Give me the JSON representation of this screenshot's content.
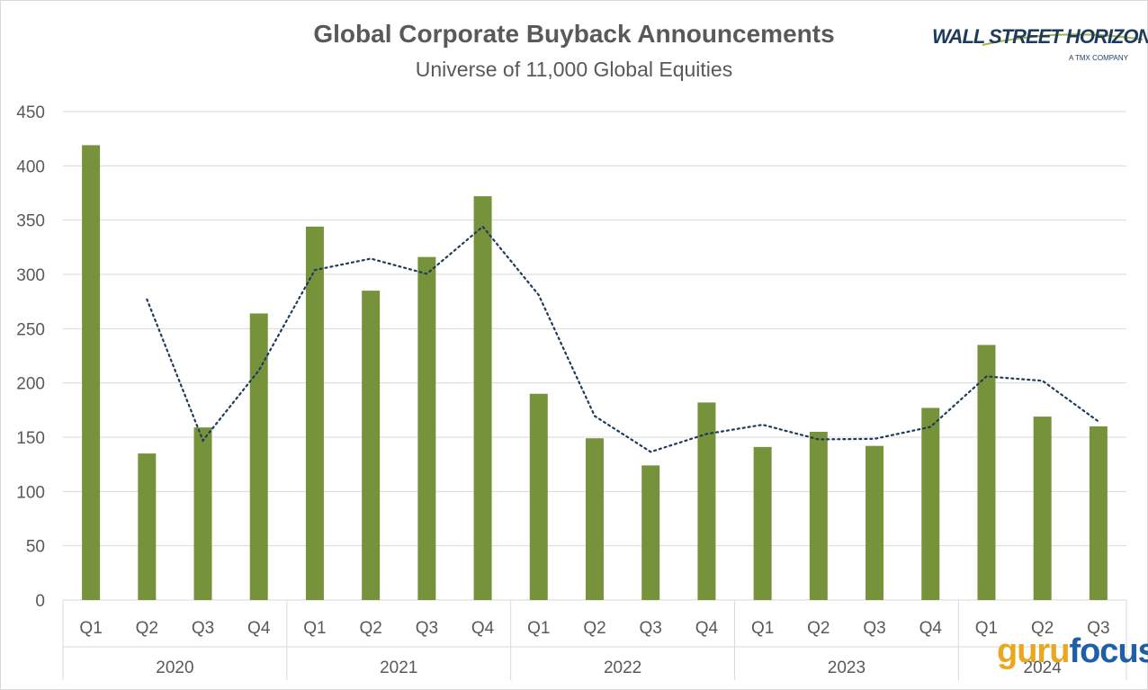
{
  "title": "Global Corporate Buyback Announcements",
  "subtitle": "Universe of 11,000 Global Equities",
  "logos": {
    "wsh_name": "WALL STREET HORIZON",
    "wsh_tagline": "A TMX COMPANY",
    "watermark_part1": "guru",
    "watermark_part2": "focus"
  },
  "colors": {
    "bar": "#76933c",
    "trendline": "#1f3b5c",
    "grid": "#d9d9d9",
    "text": "#595959"
  },
  "chart_data": {
    "type": "bar",
    "title": "Global Corporate Buyback Announcements",
    "subtitle": "Universe of 11,000 Global Equities",
    "categories": [
      "Q1",
      "Q2",
      "Q3",
      "Q4",
      "Q1",
      "Q2",
      "Q3",
      "Q4",
      "Q1",
      "Q2",
      "Q3",
      "Q4",
      "Q1",
      "Q2",
      "Q3",
      "Q4",
      "Q1",
      "Q2",
      "Q3"
    ],
    "groups": [
      {
        "label": "2020",
        "count": 4
      },
      {
        "label": "2021",
        "count": 4
      },
      {
        "label": "2022",
        "count": 4
      },
      {
        "label": "2023",
        "count": 4
      },
      {
        "label": "2024",
        "count": 3
      }
    ],
    "series": [
      {
        "values": [
          419,
          135,
          159,
          264,
          344,
          285,
          316,
          372,
          190,
          149,
          124,
          182,
          141,
          155,
          142,
          177,
          235,
          169,
          160
        ]
      }
    ],
    "trendline": {
      "style": "dotted",
      "type": "2-period moving average",
      "values": [
        null,
        277,
        147,
        211.5,
        304,
        314.5,
        300.5,
        344,
        281,
        169.5,
        136.5,
        153,
        161.5,
        148,
        148.5,
        159.5,
        206,
        202,
        164.5
      ]
    },
    "ylim": [
      0,
      450
    ],
    "yticks": [
      0,
      50,
      100,
      150,
      200,
      250,
      300,
      350,
      400,
      450
    ],
    "grid": true,
    "legend": "none"
  }
}
